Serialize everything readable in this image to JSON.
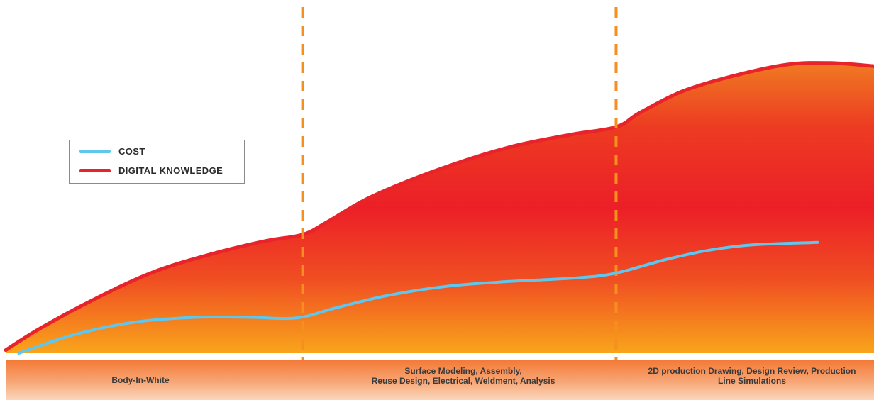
{
  "chart_data": {
    "type": "area",
    "title": "",
    "xlabel": "",
    "ylabel": "",
    "x_range": [
      0,
      100
    ],
    "y_range": [
      0,
      100
    ],
    "grid": false,
    "legend_position": "left",
    "stage_divider_x": [
      34.2,
      70.3
    ],
    "stages": [
      {
        "label": "Body-In-White"
      },
      {
        "label": "Surface Modeling, Assembly,\nReuse Design, Electrical, Weldment, Analysis"
      },
      {
        "label": "2D production Drawing, Design Review, Production\nLine Simulations"
      }
    ],
    "series": [
      {
        "name": "DIGITAL KNOWLEDGE",
        "color": "#e8242a",
        "points": [
          [
            0,
            1
          ],
          [
            4,
            8
          ],
          [
            10,
            17
          ],
          [
            17,
            26
          ],
          [
            24,
            32
          ],
          [
            30,
            36
          ],
          [
            34.2,
            38
          ],
          [
            37,
            42
          ],
          [
            42,
            50
          ],
          [
            50,
            59
          ],
          [
            58,
            66
          ],
          [
            65,
            70
          ],
          [
            70.3,
            72.5
          ],
          [
            73,
            77
          ],
          [
            78,
            84
          ],
          [
            84,
            89
          ],
          [
            90,
            92.5
          ],
          [
            95,
            93
          ],
          [
            100,
            92
          ]
        ]
      },
      {
        "name": "COST",
        "color": "#5fc6ee",
        "points": [
          [
            1.5,
            0
          ],
          [
            8,
            6
          ],
          [
            15,
            10
          ],
          [
            22,
            11.5
          ],
          [
            28,
            11.5
          ],
          [
            33.5,
            11.3
          ],
          [
            38,
            14.5
          ],
          [
            44,
            18.5
          ],
          [
            51,
            21.5
          ],
          [
            58,
            23
          ],
          [
            65,
            24
          ],
          [
            70,
            25.5
          ],
          [
            76,
            30
          ],
          [
            81,
            33
          ],
          [
            86,
            34.7
          ],
          [
            93.5,
            35.5
          ]
        ]
      }
    ]
  },
  "colors": {
    "fill_top": "#e8242a",
    "fill_bottom": "#f8a01c",
    "divider": "#f5901e"
  }
}
